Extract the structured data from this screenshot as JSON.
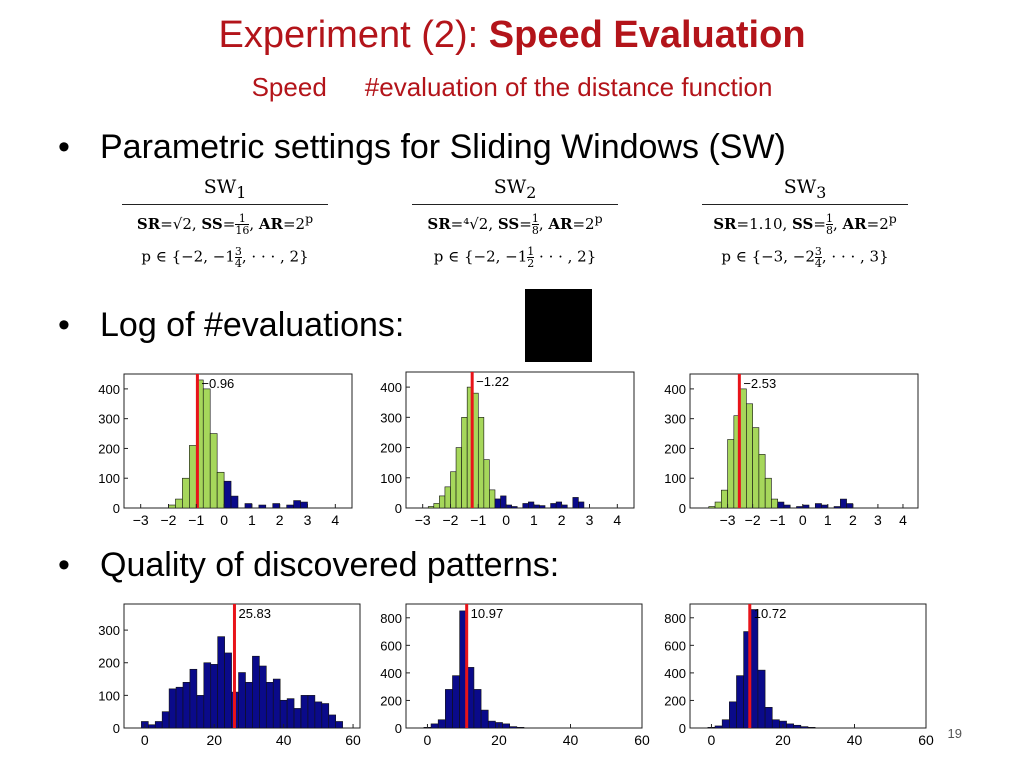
{
  "slide": {
    "title_part1": "Experiment (2): ",
    "title_part2": "Speed Evaluation",
    "subtitle_part1": "Speed",
    "subtitle_part2": "#evaluation of the distance function",
    "bullet1": "Parametric settings for Sliding Windows (SW)",
    "bullet2": "Log of #evaluations:",
    "bullet3": "Quality of discovered patterns:",
    "page_number": "19",
    "bullet_symbol": "•"
  },
  "sw_table": [
    {
      "header": "SW",
      "sub": "1",
      "sr_label": "SR",
      "sr_value": "=√2,",
      "ss_label": "SS",
      "ss_num": "1",
      "ss_den": "16",
      "ar_label": "AR",
      "ar_value": "=2",
      "ar_exp": "p",
      "p_line_a": "p ∈ {−2, −1",
      "p_frac_num": "3",
      "p_frac_den": "4",
      "p_line_b": ", · · · , 2}"
    },
    {
      "header": "SW",
      "sub": "2",
      "sr_label": "SR",
      "sr_value": "=⁴√2,",
      "ss_label": "SS",
      "ss_num": "1",
      "ss_den": "8",
      "ar_label": "AR",
      "ar_value": "=2",
      "ar_exp": "p",
      "p_line_a": "p ∈ {−2, −1",
      "p_frac_num": "1",
      "p_frac_den": "2",
      "p_line_b": " · · · , 2}"
    },
    {
      "header": "SW",
      "sub": "3",
      "sr_label": "SR",
      "sr_value": "=1.10,",
      "ss_label": "SS",
      "ss_num": "1",
      "ss_den": "8",
      "ar_label": "AR",
      "ar_value": "=2",
      "ar_exp": "p",
      "p_line_a": "p ∈ {−3, −2",
      "p_frac_num": "3",
      "p_frac_den": "4",
      "p_line_b": ", · · · , 3}"
    }
  ],
  "colors": {
    "title": "#b3141a",
    "green": "#a6d75b",
    "navy": "#0a0a8a",
    "marker": "#e8141a"
  },
  "chart_data": [
    {
      "type": "bar",
      "xlim": [
        -3.6,
        4.6
      ],
      "ylim": [
        0,
        450
      ],
      "xticks": [
        -3,
        -2,
        -1,
        0,
        1,
        2,
        3,
        4
      ],
      "yticks": [
        0,
        100,
        200,
        300,
        400
      ],
      "marker": -0.96,
      "marker_label": "−0.96",
      "bin_width": 0.25,
      "green_bins": [
        [
          -2.0,
          10
        ],
        [
          -1.75,
          30
        ],
        [
          -1.5,
          100
        ],
        [
          -1.25,
          210
        ],
        [
          -1.0,
          430
        ],
        [
          -0.75,
          400
        ],
        [
          -0.5,
          250
        ],
        [
          -0.25,
          120
        ]
      ],
      "navy_bins": [
        [
          0.0,
          90
        ],
        [
          0.25,
          40
        ],
        [
          0.75,
          15
        ],
        [
          1.25,
          10
        ],
        [
          1.75,
          15
        ],
        [
          2.25,
          10
        ],
        [
          2.5,
          25
        ],
        [
          2.75,
          20
        ]
      ]
    },
    {
      "type": "bar",
      "xlim": [
        -3.6,
        4.6
      ],
      "ylim": [
        0,
        450
      ],
      "xticks": [
        -3,
        -2,
        -1,
        0,
        1,
        2,
        3,
        4
      ],
      "yticks": [
        0,
        100,
        200,
        300,
        400
      ],
      "marker": -1.22,
      "marker_label": "−1.22",
      "bin_width": 0.2,
      "green_bins": [
        [
          -2.8,
          5
        ],
        [
          -2.6,
          15
        ],
        [
          -2.4,
          40
        ],
        [
          -2.2,
          70
        ],
        [
          -2.0,
          120
        ],
        [
          -1.8,
          200
        ],
        [
          -1.6,
          300
        ],
        [
          -1.4,
          400
        ],
        [
          -1.2,
          380
        ],
        [
          -1.0,
          300
        ],
        [
          -0.8,
          160
        ],
        [
          -0.6,
          60
        ]
      ],
      "navy_bins": [
        [
          -0.4,
          30
        ],
        [
          -0.2,
          40
        ],
        [
          0.0,
          10
        ],
        [
          0.2,
          5
        ],
        [
          0.6,
          15
        ],
        [
          0.8,
          20
        ],
        [
          1.0,
          10
        ],
        [
          1.2,
          8
        ],
        [
          1.6,
          15
        ],
        [
          1.8,
          20
        ],
        [
          2.0,
          10
        ],
        [
          2.4,
          35
        ],
        [
          2.6,
          20
        ]
      ]
    },
    {
      "type": "bar",
      "xlim": [
        -4.5,
        4.6
      ],
      "ylim": [
        0,
        450
      ],
      "xticks": [
        -3,
        -2,
        -1,
        0,
        1,
        2,
        3,
        4
      ],
      "yticks": [
        0,
        100,
        200,
        300,
        400
      ],
      "marker": -2.53,
      "marker_label": "−2.53",
      "bin_width": 0.25,
      "green_bins": [
        [
          -3.75,
          5
        ],
        [
          -3.5,
          20
        ],
        [
          -3.25,
          60
        ],
        [
          -3.0,
          230
        ],
        [
          -2.75,
          310
        ],
        [
          -2.5,
          400
        ],
        [
          -2.25,
          350
        ],
        [
          -2.0,
          270
        ],
        [
          -1.75,
          180
        ],
        [
          -1.5,
          100
        ],
        [
          -1.25,
          30
        ]
      ],
      "navy_bins": [
        [
          -1.0,
          20
        ],
        [
          -0.75,
          10
        ],
        [
          -0.25,
          5
        ],
        [
          0.0,
          10
        ],
        [
          0.5,
          15
        ],
        [
          0.75,
          10
        ],
        [
          1.25,
          5
        ],
        [
          1.5,
          30
        ],
        [
          1.75,
          15
        ]
      ]
    },
    {
      "type": "bar",
      "xlim": [
        -6,
        62
      ],
      "ylim": [
        0,
        380
      ],
      "xticks": [
        0,
        20,
        40,
        60
      ],
      "yticks": [
        0,
        100,
        200,
        300
      ],
      "marker": 25.83,
      "marker_label": "25.83",
      "bin_width": 2,
      "navy_bins": [
        [
          -1,
          20
        ],
        [
          1,
          10
        ],
        [
          3,
          20
        ],
        [
          5,
          50
        ],
        [
          7,
          120
        ],
        [
          9,
          125
        ],
        [
          11,
          140
        ],
        [
          13,
          180
        ],
        [
          15,
          100
        ],
        [
          17,
          200
        ],
        [
          19,
          195
        ],
        [
          21,
          280
        ],
        [
          23,
          230
        ],
        [
          25,
          110
        ],
        [
          27,
          170
        ],
        [
          29,
          140
        ],
        [
          31,
          220
        ],
        [
          33,
          190
        ],
        [
          35,
          140
        ],
        [
          37,
          150
        ],
        [
          39,
          85
        ],
        [
          41,
          90
        ],
        [
          43,
          60
        ],
        [
          45,
          100
        ],
        [
          47,
          100
        ],
        [
          49,
          80
        ],
        [
          51,
          75
        ],
        [
          53,
          40
        ],
        [
          55,
          20
        ]
      ]
    },
    {
      "type": "bar",
      "xlim": [
        -6,
        60
      ],
      "ylim": [
        0,
        900
      ],
      "xticks": [
        0,
        20,
        40,
        60
      ],
      "yticks": [
        0,
        200,
        400,
        600,
        800
      ],
      "marker": 10.97,
      "marker_label": "10.97",
      "bin_width": 2,
      "navy_bins": [
        [
          -1,
          5
        ],
        [
          1,
          30
        ],
        [
          3,
          60
        ],
        [
          5,
          280
        ],
        [
          7,
          380
        ],
        [
          9,
          850
        ],
        [
          11,
          440
        ],
        [
          13,
          280
        ],
        [
          15,
          130
        ],
        [
          17,
          50
        ],
        [
          19,
          40
        ],
        [
          21,
          30
        ],
        [
          23,
          10
        ],
        [
          25,
          5
        ]
      ]
    },
    {
      "type": "bar",
      "xlim": [
        -6,
        60
      ],
      "ylim": [
        0,
        900
      ],
      "xticks": [
        0,
        20,
        40,
        60
      ],
      "yticks": [
        0,
        200,
        400,
        600,
        800
      ],
      "marker": 10.72,
      "marker_label": "10.72",
      "bin_width": 2,
      "navy_bins": [
        [
          -1,
          5
        ],
        [
          1,
          15
        ],
        [
          3,
          60
        ],
        [
          5,
          190
        ],
        [
          7,
          380
        ],
        [
          9,
          700
        ],
        [
          11,
          860
        ],
        [
          13,
          420
        ],
        [
          15,
          150
        ],
        [
          17,
          60
        ],
        [
          19,
          50
        ],
        [
          21,
          30
        ],
        [
          23,
          20
        ],
        [
          25,
          10
        ],
        [
          27,
          5
        ]
      ]
    }
  ]
}
